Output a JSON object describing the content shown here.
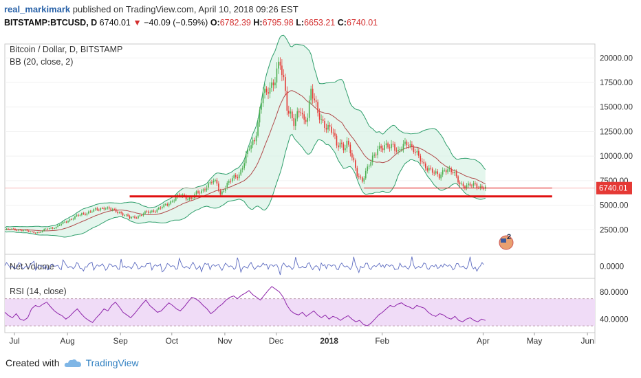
{
  "header": {
    "user": "real_markimark",
    "published": "published on TradingView.com, April 10, 2018 09:26 EST"
  },
  "quote": {
    "symbol": "BITSTAMP:BTCUSD, D",
    "last": "6740.01",
    "change": "−40.09 (−0.59%)",
    "open_label": "O:",
    "open": "6782.39",
    "high_label": "H:",
    "high": "6795.98",
    "low_label": "L:",
    "low": "6653.21",
    "close_label": "C:",
    "close": "6740.01"
  },
  "footer": {
    "created": "Created with",
    "brand": "TradingView"
  },
  "colors": {
    "up": "#4caf50",
    "down": "#e53935",
    "band": "#2e9e6b",
    "band_fill": "#d9f2e6",
    "basis": "#b04a4a",
    "support": "#e01010",
    "rsi_line": "#8e24aa",
    "vol_line": "#5c6bc0",
    "rsi_fill": "#f0dcf7"
  },
  "chart_data": [
    {
      "type": "line",
      "panel": "price",
      "title": "Bitcoin / Dollar, D, BITSTAMP",
      "indicator": "BB (20, close, 2)",
      "x": [
        "Jul",
        "Aug",
        "Sep",
        "Oct",
        "Nov",
        "Dec",
        "2018",
        "Feb",
        "Apr",
        "May",
        "Jun"
      ],
      "series": [
        {
          "points": [
            [
              0,
              2500
            ],
            [
              5,
              2550
            ],
            [
              10,
              2450
            ],
            [
              15,
              2300
            ],
            [
              20,
              2200
            ],
            [
              25,
              2650
            ],
            [
              30,
              2750
            ],
            [
              35,
              3300
            ],
            [
              40,
              3700
            ],
            [
              45,
              4100
            ],
            [
              50,
              4350
            ],
            [
              55,
              4600
            ],
            [
              58,
              4800
            ],
            [
              61,
              4600
            ],
            [
              64,
              4450
            ],
            [
              67,
              4300
            ],
            [
              70,
              4000
            ],
            [
              73,
              3700
            ],
            [
              76,
              3800
            ],
            [
              79,
              3950
            ],
            [
              82,
              4200
            ],
            [
              85,
              4350
            ],
            [
              88,
              4500
            ],
            [
              91,
              4700
            ],
            [
              95,
              5100
            ],
            [
              100,
              5800
            ],
            [
              103,
              5950
            ],
            [
              106,
              5800
            ],
            [
              109,
              5700
            ],
            [
              112,
              6150
            ],
            [
              115,
              6400
            ],
            [
              118,
              7000
            ],
            [
              121,
              7400
            ],
            [
              124,
              7200
            ],
            [
              126,
              6100
            ],
            [
              128,
              6700
            ],
            [
              131,
              7300
            ],
            [
              134,
              7800
            ],
            [
              137,
              8200
            ],
            [
              140,
              9400
            ],
            [
              143,
              10800
            ],
            [
              146,
              11700
            ],
            [
              149,
              14500
            ],
            [
              151,
              16500
            ],
            [
              153,
              16000
            ],
            [
              155,
              17200
            ],
            [
              157,
              17500
            ],
            [
              159,
              19000
            ],
            [
              161,
              19100
            ],
            [
              163,
              17500
            ],
            [
              165,
              15000
            ],
            [
              167,
              14500
            ],
            [
              169,
              13500
            ],
            [
              171,
              14000
            ],
            [
              173,
              14500
            ],
            [
              175,
              13500
            ],
            [
              177,
              14400
            ],
            [
              179,
              16800
            ],
            [
              181,
              15500
            ],
            [
              183,
              14200
            ],
            [
              186,
              13500
            ],
            [
              189,
              13000
            ],
            [
              192,
              12200
            ],
            [
              194,
              11000
            ],
            [
              196,
              11500
            ],
            [
              198,
              10900
            ],
            [
              200,
              11300
            ],
            [
              203,
              9800
            ],
            [
              206,
              8300
            ],
            [
              209,
              7500
            ],
            [
              212,
              8600
            ],
            [
              215,
              9900
            ],
            [
              218,
              10900
            ],
            [
              221,
              10700
            ],
            [
              224,
              11000
            ],
            [
              227,
              11300
            ],
            [
              230,
              10300
            ],
            [
              233,
              11000
            ],
            [
              236,
              11500
            ],
            [
              239,
              10700
            ],
            [
              242,
              9800
            ],
            [
              245,
              9100
            ],
            [
              248,
              8800
            ],
            [
              251,
              8200
            ],
            [
              254,
              7900
            ],
            [
              257,
              8800
            ],
            [
              260,
              8500
            ],
            [
              263,
              8100
            ],
            [
              266,
              7300
            ],
            [
              269,
              6900
            ],
            [
              272,
              6950
            ],
            [
              275,
              7150
            ],
            [
              278,
              6850
            ],
            [
              281,
              6740
            ]
          ]
        }
      ],
      "ylim": [
        0,
        21000
      ],
      "yticks": [
        "2500.00",
        "5000.00",
        "7500.00",
        "10000.00",
        "12500.00",
        "15000.00",
        "17500.00",
        "20000.00"
      ],
      "last_price_label": "6740.01",
      "annotations": {
        "support_level": 5900,
        "resistance_level": 6750
      },
      "event_badge": "2"
    },
    {
      "type": "line",
      "panel": "volume",
      "title": "Net Volume",
      "ylim": [
        -1,
        1
      ],
      "yticks": [
        "0.0000"
      ]
    },
    {
      "type": "line",
      "panel": "rsi",
      "title": "RSI (14, close)",
      "ylim": [
        20,
        100
      ],
      "band": [
        30,
        70
      ],
      "yticks": [
        "40.0000",
        "80.0000"
      ],
      "series": [
        {
          "values": [
            50,
            45,
            42,
            48,
            40,
            38,
            42,
            55,
            60,
            58,
            62,
            65,
            58,
            52,
            48,
            45,
            40,
            44,
            50,
            55,
            48,
            42,
            38,
            35,
            42,
            48,
            55,
            52,
            60,
            65,
            58,
            50,
            46,
            42,
            48,
            55,
            62,
            68,
            60,
            55,
            50,
            52,
            58,
            64,
            60,
            55,
            52,
            58,
            65,
            72,
            70,
            66,
            60,
            55,
            48,
            52,
            58,
            62,
            68,
            72,
            74,
            70,
            75,
            78,
            82,
            76,
            72,
            68,
            75,
            82,
            88,
            84,
            80,
            72,
            60,
            52,
            48,
            46,
            50,
            44,
            48,
            52,
            46,
            42,
            46,
            40,
            44,
            42,
            38,
            42,
            45,
            40,
            36,
            38,
            32,
            30,
            34,
            40,
            46,
            50,
            55,
            60,
            58,
            62,
            64,
            60,
            58,
            55,
            60,
            58,
            56,
            50,
            46,
            44,
            48,
            46,
            42,
            40,
            44,
            38,
            36,
            40,
            42,
            38,
            36,
            40,
            38
          ]
        }
      ]
    }
  ],
  "xaxis": {
    "ticks": [
      "Jul",
      "Aug",
      "Sep",
      "Oct",
      "Nov",
      "Dec",
      "2018",
      "Feb",
      "Apr",
      "May",
      "Jun"
    ],
    "bold": "2018"
  }
}
